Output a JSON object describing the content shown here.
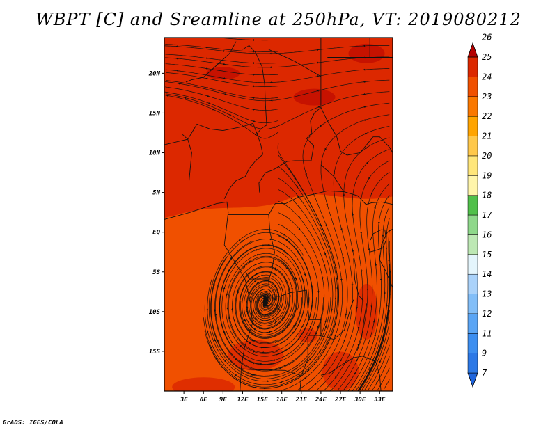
{
  "chart_data": {
    "type": "heatmap",
    "title": "WBPT [C] and Sreamline at 250hPa, VT: 2019080212",
    "variable": "WBPT [C]",
    "overlay": "Streamline",
    "level": "250hPa",
    "valid_time": "2019080212",
    "x_range": [
      0,
      35
    ],
    "y_range": [
      -20,
      24.5
    ],
    "x_ticks": [
      {
        "value": 3,
        "label": "3E"
      },
      {
        "value": 6,
        "label": "6E"
      },
      {
        "value": 9,
        "label": "9E"
      },
      {
        "value": 12,
        "label": "12E"
      },
      {
        "value": 15,
        "label": "15E"
      },
      {
        "value": 18,
        "label": "18E"
      },
      {
        "value": 21,
        "label": "21E"
      },
      {
        "value": 24,
        "label": "24E"
      },
      {
        "value": 27,
        "label": "27E"
      },
      {
        "value": 30,
        "label": "30E"
      },
      {
        "value": 33,
        "label": "33E"
      }
    ],
    "y_ticks": [
      {
        "value": 20,
        "label": "20N"
      },
      {
        "value": 15,
        "label": "15N"
      },
      {
        "value": 10,
        "label": "10N"
      },
      {
        "value": 5,
        "label": "5N"
      },
      {
        "value": 0,
        "label": "EQ"
      },
      {
        "value": -5,
        "label": "5S"
      },
      {
        "value": -10,
        "label": "10S"
      },
      {
        "value": -15,
        "label": "15S"
      }
    ],
    "colorbar": {
      "levels": [
        "7",
        "9",
        "11",
        "12",
        "13",
        "14",
        "15",
        "16",
        "17",
        "18",
        "19",
        "20",
        "21",
        "22",
        "23",
        "24",
        "25",
        "26"
      ],
      "colors": [
        "#1e64dc",
        "#2c78e6",
        "#3c8ef0",
        "#5aa5f5",
        "#82bef8",
        "#aad2fa",
        "#e4f5fc",
        "#bde8b4",
        "#8ed88a",
        "#50c04a",
        "#fff5aa",
        "#ffe67a",
        "#ffc84a",
        "#ffa400",
        "#fa7800",
        "#f05000",
        "#dc2800",
        "#b40000"
      ]
    },
    "field": {
      "north_band_value": 24.3,
      "south_band_value": 23.2,
      "shading_description": "mostly 23-24.5 C; warmer (red-orange) north of ~3N, cooler orange south"
    },
    "streamline_features": {
      "anticyclone_center": {
        "lon": 15.5,
        "lat": -8.5
      },
      "north_flow": "easterly"
    }
  },
  "credit": "GrADS: IGES/COLA"
}
